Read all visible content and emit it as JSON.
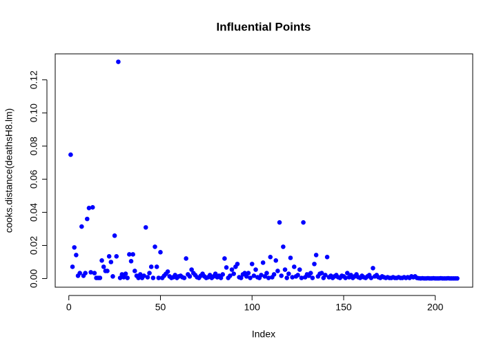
{
  "chart_data": {
    "type": "scatter",
    "title": "Influential Points",
    "xlabel": "Index",
    "ylabel": "cooks.distance(deathsH8.lm)",
    "color": "#0000ff",
    "x": [
      1,
      2,
      3,
      4,
      5,
      6,
      7,
      8,
      9,
      10,
      11,
      12,
      13,
      14,
      15,
      16,
      17,
      18,
      19,
      20,
      21,
      22,
      23,
      24,
      25,
      26,
      27,
      28,
      29,
      30,
      31,
      32,
      33,
      34,
      35,
      36,
      37,
      38,
      39,
      40,
      41,
      42,
      43,
      44,
      45,
      46,
      47,
      48,
      49,
      50,
      51,
      52,
      53,
      54,
      55,
      56,
      57,
      58,
      59,
      60,
      61,
      62,
      63,
      64,
      65,
      66,
      67,
      68,
      69,
      70,
      71,
      72,
      73,
      74,
      75,
      76,
      77,
      78,
      79,
      80,
      81,
      82,
      83,
      84,
      85,
      86,
      87,
      88,
      89,
      90,
      91,
      92,
      93,
      94,
      95,
      96,
      97,
      98,
      99,
      100,
      101,
      102,
      103,
      104,
      105,
      106,
      107,
      108,
      109,
      110,
      111,
      112,
      113,
      114,
      115,
      116,
      117,
      118,
      119,
      120,
      121,
      122,
      123,
      124,
      125,
      126,
      127,
      128,
      129,
      130,
      131,
      132,
      133,
      134,
      135,
      136,
      137,
      138,
      139,
      140,
      141,
      142,
      143,
      144,
      145,
      146,
      147,
      148,
      149,
      150,
      151,
      152,
      153,
      154,
      155,
      156,
      157,
      158,
      159,
      160,
      161,
      162,
      163,
      164,
      165,
      166,
      167,
      168,
      169,
      170,
      171,
      172,
      173,
      174,
      175,
      176,
      177,
      178,
      179,
      180,
      181,
      182,
      183,
      184,
      185,
      186,
      187,
      188,
      189,
      190,
      191,
      192,
      193,
      194,
      195,
      196,
      197,
      198,
      199,
      200,
      201,
      202,
      203,
      204,
      205,
      206,
      207,
      208,
      209,
      210,
      211,
      212
    ],
    "values": [
      0.0748,
      0.0071,
      0.0188,
      0.0142,
      0.0017,
      0.0033,
      0.0314,
      0.0017,
      0.0033,
      0.036,
      0.0426,
      0.0038,
      0.043,
      0.0033,
      0.0004,
      0.0004,
      0.0004,
      0.0109,
      0.0071,
      0.0046,
      0.0046,
      0.0134,
      0.01,
      0.0013,
      0.0259,
      0.0134,
      0.1309,
      0.0004,
      0.0025,
      0.0008,
      0.0029,
      0.0004,
      0.0146,
      0.0105,
      0.0146,
      0.0046,
      0.0017,
      0.0004,
      0.0025,
      0.0004,
      0.0017,
      0.0309,
      0.0008,
      0.0033,
      0.0071,
      0.0004,
      0.0192,
      0.0071,
      0.0004,
      0.0159,
      0.0004,
      0.0017,
      0.0029,
      0.0042,
      0.0013,
      0.0004,
      0.0008,
      0.0021,
      0.0004,
      0.0013,
      0.0017,
      0.0008,
      0.0004,
      0.0121,
      0.0025,
      0.0013,
      0.0054,
      0.0033,
      0.0021,
      0.0008,
      0.0004,
      0.0017,
      0.0029,
      0.0013,
      0.0004,
      0.0008,
      0.0021,
      0.0004,
      0.0013,
      0.0029,
      0.0008,
      0.0017,
      0.0004,
      0.0025,
      0.0121,
      0.0067,
      0.0004,
      0.0017,
      0.0054,
      0.0029,
      0.0071,
      0.0088,
      0.0008,
      0.0004,
      0.0025,
      0.0033,
      0.0013,
      0.0033,
      0.0004,
      0.0088,
      0.0017,
      0.0054,
      0.0008,
      0.0004,
      0.0021,
      0.0096,
      0.0013,
      0.0033,
      0.0004,
      0.013,
      0.0008,
      0.0025,
      0.0109,
      0.0046,
      0.0339,
      0.0017,
      0.0192,
      0.0054,
      0.0004,
      0.0029,
      0.0125,
      0.0008,
      0.0071,
      0.0013,
      0.0021,
      0.0054,
      0.0004,
      0.0339,
      0.0008,
      0.0025,
      0.0017,
      0.0033,
      0.0004,
      0.0088,
      0.0142,
      0.0013,
      0.0029,
      0.0033,
      0.0004,
      0.0021,
      0.013,
      0.0008,
      0.0017,
      0.0004,
      0.0013,
      0.0021,
      0.0008,
      0.0004,
      0.0017,
      0.0013,
      0.0004,
      0.0033,
      0.0008,
      0.0021,
      0.0004,
      0.0013,
      0.0025,
      0.0008,
      0.0004,
      0.0017,
      0.0008,
      0.0004,
      0.0013,
      0.0021,
      0.0004,
      0.0063,
      0.0013,
      0.0021,
      0.0008,
      0.0004,
      0.0013,
      0.0008,
      0.0004,
      0.0008,
      0.0004,
      0.0004,
      0.0008,
      0.0004,
      0.0004,
      0.0008,
      0.0004,
      0.0004,
      0.0008,
      0.0004,
      0.0008,
      0.0004,
      0.0013,
      0.0008,
      0.0013,
      0.0004,
      0.0002,
      0.0001,
      0.0002,
      0.0001,
      0.0001,
      0.0002,
      0.0001,
      0.0001,
      0.0002,
      0.0001,
      0.0001,
      0.0001,
      0.0002,
      0.0001,
      0.0001,
      0.0001,
      0.0002,
      0.0001,
      0.0001,
      0.0001,
      0.0001,
      0.0001
    ],
    "xlim": [
      -7.44,
      220.44
    ],
    "ylim": [
      -0.00522,
      0.1357
    ],
    "xticks": [
      0,
      50,
      100,
      150,
      200
    ],
    "yticks": [
      {
        "value": 0,
        "label": "0.00"
      },
      {
        "value": 0.02,
        "label": "0.02"
      },
      {
        "value": 0.04,
        "label": "0.04"
      },
      {
        "value": 0.06,
        "label": "0.06"
      },
      {
        "value": 0.08,
        "label": "0.08"
      },
      {
        "value": 0.1,
        "label": "0.10"
      },
      {
        "value": 0.12,
        "label": "0.12"
      }
    ]
  }
}
